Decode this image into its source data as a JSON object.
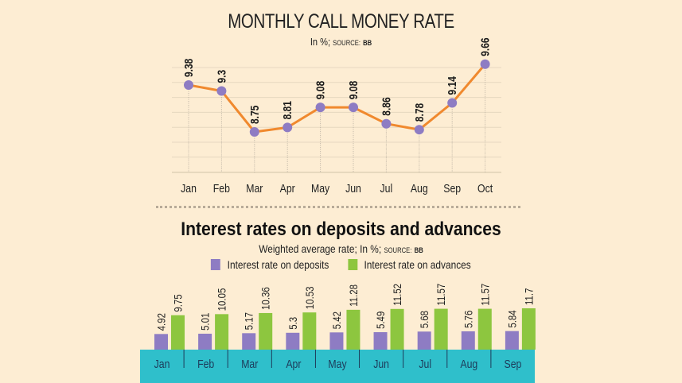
{
  "chart1": {
    "title": "MONTHLY CALL MONEY RATE",
    "subtitle_main": "In %;",
    "subtitle_source_label": "SOURCE:",
    "subtitle_source": "BB"
  },
  "chart2": {
    "title": "Interest rates on deposits and advances",
    "subtitle_main": "Weighted average rate; In %;",
    "subtitle_source_label": "SOURCE:",
    "subtitle_source": "BB",
    "legend": [
      {
        "label": "Interest rate on deposits",
        "color": "#8e7cc3"
      },
      {
        "label": "Interest rate on advances",
        "color": "#8dc63f"
      }
    ]
  },
  "colors": {
    "background": "#fdedd3",
    "line": "#f0892e",
    "marker": "#8e7cc3",
    "deposits": "#8e7cc3",
    "advances": "#8dc63f",
    "axis_band": "#2fbfcb",
    "grid": "#e6d8c0"
  },
  "chart_data": [
    {
      "type": "line",
      "title": "MONTHLY CALL MONEY RATE",
      "subtitle": "In %; SOURCE: BB",
      "xlabel": "",
      "ylabel": "",
      "categories": [
        "Jan",
        "Feb",
        "Mar",
        "Apr",
        "May",
        "Jun",
        "Jul",
        "Aug",
        "Sep",
        "Oct"
      ],
      "values": [
        9.38,
        9.3,
        8.75,
        8.81,
        9.08,
        9.08,
        8.86,
        8.78,
        9.14,
        9.66
      ],
      "grid": true,
      "legend": null
    },
    {
      "type": "bar",
      "title": "Interest rates on deposits and advances",
      "subtitle": "Weighted average rate; In %; SOURCE: BB",
      "categories": [
        "Jan",
        "Feb",
        "Mar",
        "Apr",
        "May",
        "Jun",
        "Jul",
        "Aug",
        "Sep"
      ],
      "series": [
        {
          "name": "Interest rate on deposits",
          "values": [
            4.92,
            5.01,
            5.17,
            5.3,
            5.42,
            5.49,
            5.68,
            5.76,
            5.84
          ]
        },
        {
          "name": "Interest rate on advances",
          "values": [
            9.75,
            10.05,
            10.36,
            10.53,
            11.28,
            11.52,
            11.57,
            11.57,
            11.7
          ]
        }
      ],
      "legend_position": "top",
      "grid": false
    }
  ]
}
